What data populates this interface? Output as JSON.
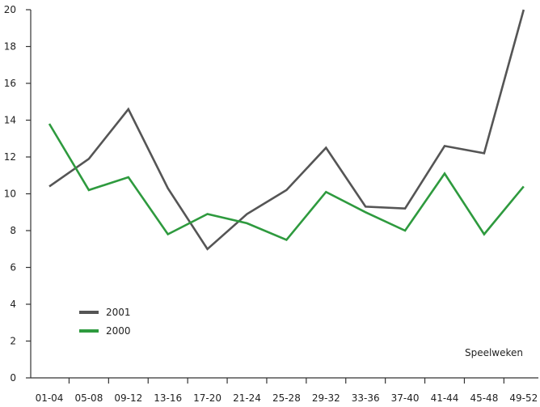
{
  "chart_data": {
    "type": "line",
    "categories": [
      "01-04",
      "05-08",
      "09-12",
      "13-16",
      "17-20",
      "21-24",
      "25-28",
      "29-32",
      "33-36",
      "37-40",
      "41-44",
      "45-48",
      "49-52"
    ],
    "xlabel": "Speelweken",
    "ylim": [
      0,
      20
    ],
    "yticks": [
      0,
      2,
      4,
      6,
      8,
      10,
      12,
      14,
      16,
      18,
      20
    ],
    "grid": false,
    "legend_position": "bottom-left",
    "series": [
      {
        "name": "2001",
        "color": "#555555",
        "values": [
          10.4,
          11.9,
          14.6,
          10.3,
          7.0,
          8.9,
          10.2,
          12.5,
          9.3,
          9.2,
          12.6,
          12.2,
          20.0
        ]
      },
      {
        "name": "2000",
        "color": "#2e9a3e",
        "values": [
          13.8,
          10.2,
          10.9,
          7.8,
          8.9,
          8.4,
          7.5,
          10.1,
          9.0,
          8.0,
          11.1,
          7.8,
          10.4
        ]
      }
    ]
  }
}
